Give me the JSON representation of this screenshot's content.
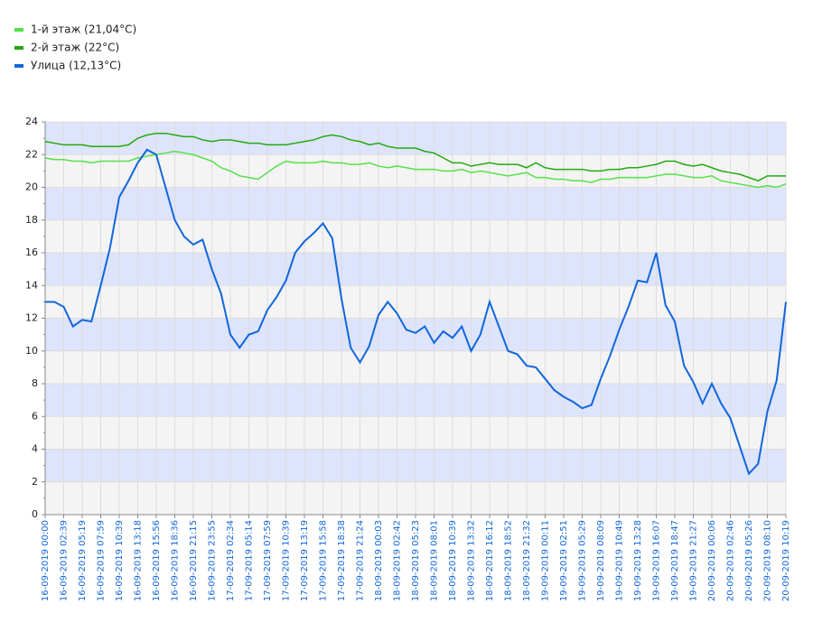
{
  "chart_data": {
    "type": "line",
    "categories": [
      "16-09-2019 00:00",
      null,
      "16-09-2019 02:39",
      null,
      "16-09-2019 05:19",
      null,
      "16-09-2019 07:59",
      null,
      "16-09-2019 10:39",
      null,
      "16-09-2019 13:18",
      null,
      "16-09-2019 15:56",
      null,
      "16-09-2019 18:36",
      null,
      "16-09-2019 21:15",
      null,
      "16-09-2019 23:55",
      null,
      "17-09-2019 02:34",
      null,
      "17-09-2019 05:14",
      null,
      "17-09-2019 07:59",
      null,
      "17-09-2019 10:39",
      null,
      "17-09-2019 13:19",
      null,
      "17-09-2019 15:58",
      null,
      "17-09-2019 18:38",
      null,
      "17-09-2019 21:24",
      null,
      "18-09-2019 00:03",
      null,
      "18-09-2019 02:42",
      null,
      "18-09-2019 05:23",
      null,
      "18-09-2019 08:01",
      null,
      "18-09-2019 10:39",
      null,
      "18-09-2019 13:32",
      null,
      "18-09-2019 16:12",
      null,
      "18-09-2019 18:52",
      null,
      "18-09-2019 21:32",
      null,
      "19-09-2019 00:11",
      null,
      "19-09-2019 02:51",
      null,
      "19-09-2019 05:29",
      null,
      "19-09-2019 08:09",
      null,
      "19-09-2019 10:49",
      null,
      "19-09-2019 13:28",
      null,
      "19-09-2019 16:07",
      null,
      "19-09-2019 18:47",
      null,
      "19-09-2019 21:27",
      null,
      "20-09-2019 00:06",
      null,
      "20-09-2019 02:46",
      null,
      "20-09-2019 05:26",
      null,
      "20-09-2019 08:10",
      null,
      "20-09-2019 10:19"
    ],
    "series": [
      {
        "name": "1-й этаж (21,04°C)",
        "color": "#55e04a",
        "values": [
          21.8,
          21.7,
          21.7,
          21.6,
          21.6,
          21.5,
          21.6,
          21.6,
          21.6,
          21.6,
          21.8,
          21.9,
          22.0,
          22.1,
          22.2,
          22.1,
          22.0,
          21.8,
          21.6,
          21.2,
          21.0,
          20.7,
          20.6,
          20.5,
          20.9,
          21.3,
          21.6,
          21.5,
          21.5,
          21.5,
          21.6,
          21.5,
          21.5,
          21.4,
          21.4,
          21.5,
          21.3,
          21.2,
          21.3,
          21.2,
          21.1,
          21.1,
          21.1,
          21.0,
          21.0,
          21.1,
          20.9,
          21.0,
          20.9,
          20.8,
          20.7,
          20.8,
          20.9,
          20.6,
          20.6,
          20.5,
          20.5,
          20.4,
          20.4,
          20.3,
          20.5,
          20.5,
          20.6,
          20.6,
          20.6,
          20.6,
          20.7,
          20.8,
          20.8,
          20.7,
          20.6,
          20.6,
          20.7,
          20.4,
          20.3,
          20.2,
          20.1,
          20.0,
          20.1,
          20.0,
          20.2
        ]
      },
      {
        "name": "2-й этаж (22°C)",
        "color": "#22aa11",
        "values": [
          22.8,
          22.7,
          22.6,
          22.6,
          22.6,
          22.5,
          22.5,
          22.5,
          22.5,
          22.6,
          23.0,
          23.2,
          23.3,
          23.3,
          23.2,
          23.1,
          23.1,
          22.9,
          22.8,
          22.9,
          22.9,
          22.8,
          22.7,
          22.7,
          22.6,
          22.6,
          22.6,
          22.7,
          22.8,
          22.9,
          23.1,
          23.2,
          23.1,
          22.9,
          22.8,
          22.6,
          22.7,
          22.5,
          22.4,
          22.4,
          22.4,
          22.2,
          22.1,
          21.8,
          21.5,
          21.5,
          21.3,
          21.4,
          21.5,
          21.4,
          21.4,
          21.4,
          21.2,
          21.5,
          21.2,
          21.1,
          21.1,
          21.1,
          21.1,
          21.0,
          21.0,
          21.1,
          21.1,
          21.2,
          21.2,
          21.3,
          21.4,
          21.6,
          21.6,
          21.4,
          21.3,
          21.4,
          21.2,
          21.0,
          20.9,
          20.8,
          20.6,
          20.4,
          20.7,
          20.7,
          20.7
        ]
      },
      {
        "name": "Улица (12,13°C)",
        "color": "#1166dd",
        "values": [
          13.0,
          13.0,
          12.7,
          11.5,
          11.9,
          11.8,
          14.0,
          16.3,
          19.4,
          20.4,
          21.5,
          22.3,
          22.0,
          20.0,
          18.0,
          17.0,
          16.5,
          16.8,
          15.0,
          13.5,
          11.0,
          10.2,
          11.0,
          11.2,
          12.5,
          13.3,
          14.3,
          16.0,
          16.7,
          17.2,
          17.8,
          16.9,
          13.2,
          10.2,
          9.3,
          10.3,
          12.2,
          13.0,
          12.3,
          11.3,
          11.1,
          11.5,
          10.5,
          11.2,
          10.8,
          11.5,
          10.0,
          11.0,
          13.0,
          11.5,
          10.0,
          9.8,
          9.1,
          9.0,
          8.3,
          7.6,
          7.2,
          6.9,
          6.5,
          6.7,
          8.3,
          9.7,
          11.3,
          12.7,
          14.3,
          14.2,
          16.0,
          12.8,
          11.8,
          9.1,
          8.1,
          6.8,
          8.0,
          6.8,
          5.9,
          4.2,
          2.5,
          3.1,
          6.3,
          8.2,
          13.0
        ]
      }
    ],
    "ylim": [
      0,
      24
    ],
    "yticks": [
      0,
      2,
      4,
      6,
      8,
      10,
      12,
      14,
      16,
      18,
      20,
      22,
      24
    ],
    "grid": true,
    "band_colors": [
      "#f4f4f4",
      "#dde4fb"
    ],
    "legend": "top-left"
  }
}
